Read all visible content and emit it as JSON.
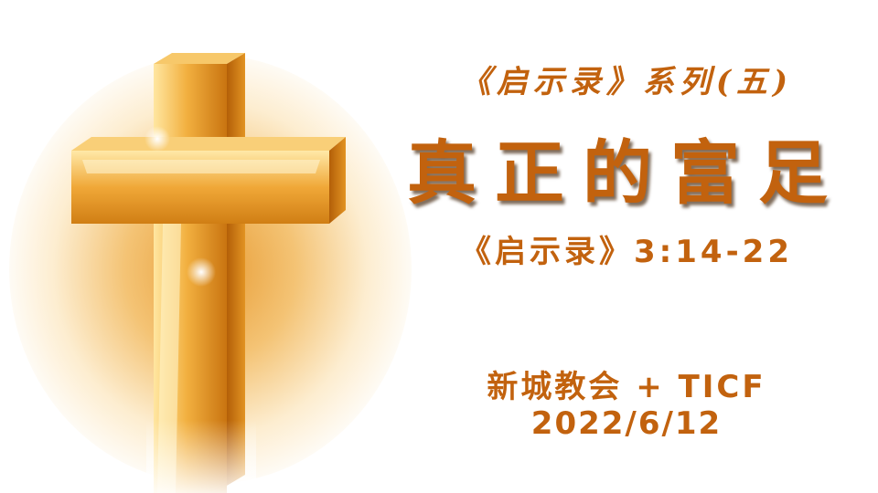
{
  "slide": {
    "series_title": "《启示录》系列(五)",
    "main_title": "真正的富足",
    "scripture_ref": "《启示录》3:14-22",
    "church_name": "新城教会 + TICF",
    "date": "2022/6/12"
  },
  "colors": {
    "text_primary": "#c2620e",
    "cross_gold": "#e8961e",
    "glow": "#f0b048",
    "background": "#ffffff"
  },
  "icons": {
    "cross": "cross-icon"
  }
}
